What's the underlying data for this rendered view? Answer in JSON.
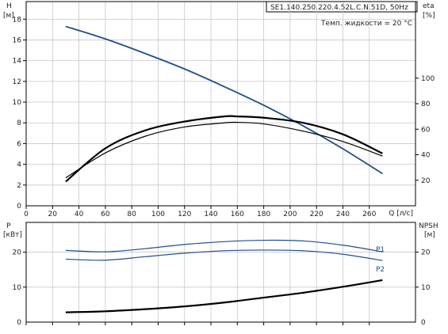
{
  "header": {
    "pump_model": "SE1.140.250.220.4.52L.C.N.51D, 50Hz",
    "liquid_temp": "Темп. жидкости = 20 °C"
  },
  "chart_data": [
    {
      "type": "line",
      "panel": "head-efficiency",
      "xlabel": "Q [л/с]",
      "ylabel_left": "H",
      "ylabel_left_unit": "[м]",
      "ylabel_right": "eta",
      "ylabel_right_unit": "[%]",
      "xlim": [
        0,
        295
      ],
      "ylim_left": [
        0,
        19.7
      ],
      "ylim_right": [
        0,
        160
      ],
      "x_ticks": [
        0,
        20,
        40,
        60,
        80,
        100,
        120,
        140,
        160,
        180,
        200,
        220,
        240,
        260
      ],
      "y_ticks_left": [
        2,
        4,
        6,
        8,
        10,
        12,
        14,
        16,
        18
      ],
      "y_ticks_right": [
        20,
        40,
        60,
        80,
        100
      ],
      "grid": true,
      "series": [
        {
          "role": "head",
          "axis": "left",
          "color": "#1f4e8c",
          "x": [
            30,
            60,
            90,
            120,
            150,
            180,
            210,
            240,
            270
          ],
          "y": [
            17.3,
            16.1,
            14.7,
            13.2,
            11.5,
            9.7,
            7.7,
            5.5,
            3.1
          ]
        },
        {
          "role": "efficiency",
          "axis": "right",
          "color": "#000000",
          "x": [
            30,
            60,
            90,
            120,
            150,
            160,
            180,
            210,
            240,
            270
          ],
          "y": [
            19,
            45,
            59,
            66,
            70,
            70,
            69,
            65,
            56,
            41
          ]
        },
        {
          "role": "efficiency-upper",
          "axis": "left",
          "color": "#000000",
          "x": [
            30,
            60,
            90,
            120,
            150,
            160,
            180,
            210,
            240,
            270
          ],
          "y": [
            2.7,
            5.1,
            6.7,
            7.6,
            8.0,
            8.05,
            7.9,
            7.2,
            6.2,
            4.8
          ]
        }
      ]
    },
    {
      "type": "line",
      "panel": "power-npsh",
      "ylabel_left": "P",
      "ylabel_left_unit": "[кВт]",
      "ylabel_right": "NPSH",
      "ylabel_right_unit": "[м]",
      "xlim": [
        0,
        295
      ],
      "ylim_left": [
        0,
        28.5
      ],
      "ylim_right": [
        0,
        28.5
      ],
      "y_ticks_left": [
        10,
        20
      ],
      "y_ticks_right": [
        10,
        20
      ],
      "grid": true,
      "series": [
        {
          "name": "P1",
          "axis": "left",
          "color": "#1f4e8c",
          "x": [
            30,
            60,
            90,
            120,
            150,
            180,
            210,
            240,
            270
          ],
          "y": [
            20.5,
            20.1,
            21.0,
            22.2,
            23.0,
            23.4,
            23.2,
            22.0,
            20.1
          ]
        },
        {
          "name": "P2",
          "axis": "left",
          "color": "#1f4e8c",
          "x": [
            30,
            60,
            90,
            120,
            150,
            180,
            210,
            240,
            270
          ],
          "y": [
            18.0,
            17.7,
            18.7,
            19.7,
            20.4,
            20.6,
            20.4,
            19.4,
            17.6
          ]
        },
        {
          "role": "npsh",
          "axis": "right",
          "color": "#000000",
          "x": [
            30,
            60,
            90,
            120,
            150,
            180,
            210,
            240,
            270
          ],
          "y": [
            2.8,
            3.1,
            3.7,
            4.5,
            5.6,
            7.0,
            8.4,
            10.1,
            12.0
          ]
        }
      ]
    }
  ]
}
